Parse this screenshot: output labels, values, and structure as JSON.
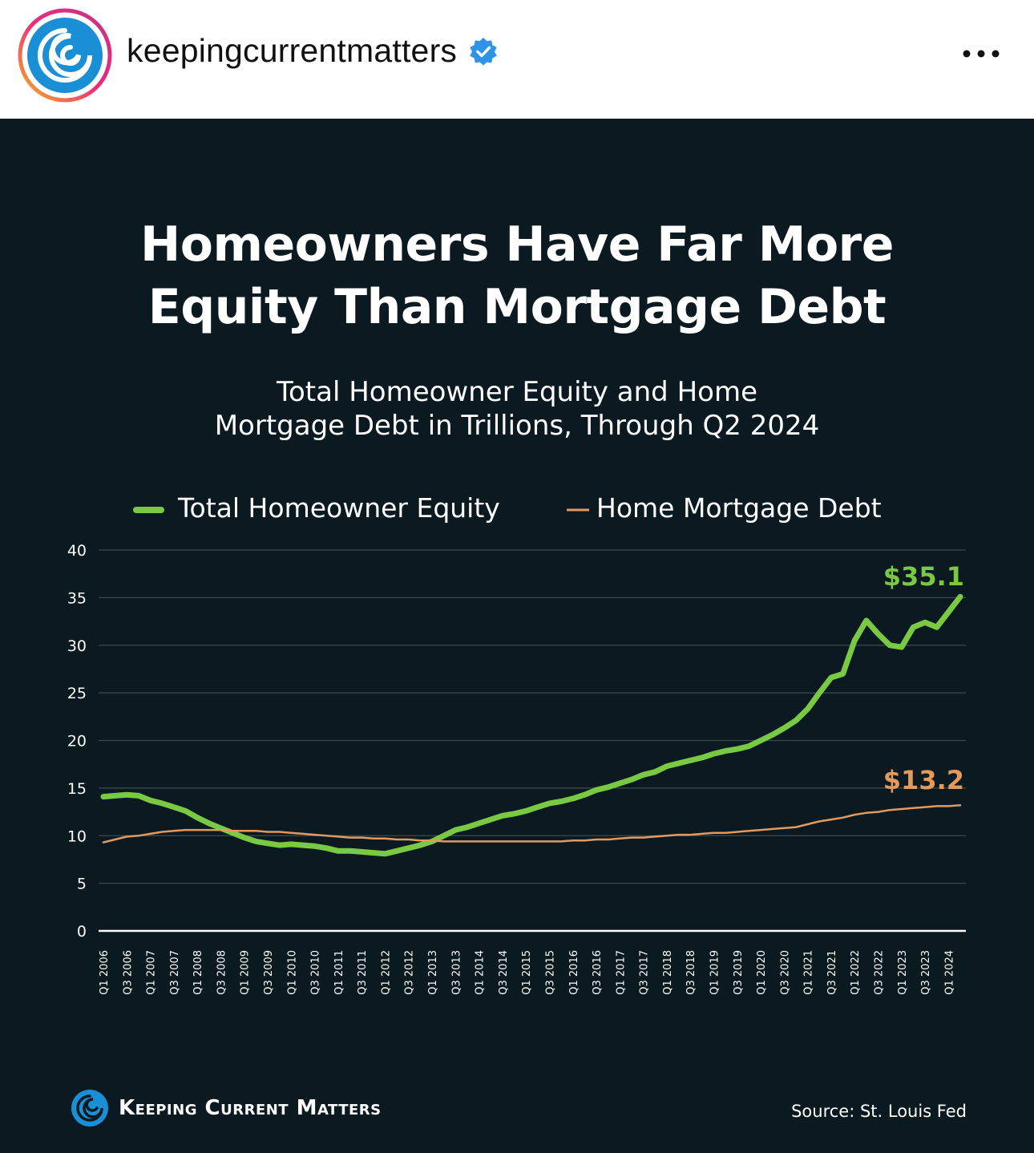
{
  "post": {
    "username": "keepingcurrentmatters",
    "verified_icon": "verified-badge-icon",
    "more_icon": "more-dots-icon"
  },
  "graphic": {
    "title_line1": "Homeowners Have Far More",
    "title_line2": "Equity Than Mortgage Debt",
    "subtitle_line1": "Total Homeowner Equity and Home",
    "subtitle_line2": "Mortgage Debt in Trillions, Through Q2 2024",
    "brand": "Keeping Current Matters",
    "source": "Source: St. Louis Fed"
  },
  "colors": {
    "background": "#0b1920",
    "equity": "#7ac943",
    "debt": "#e39a5f"
  },
  "chart_data": {
    "type": "line",
    "title": "Homeowners Have Far More Equity Than Mortgage Debt",
    "subtitle": "Total Homeowner Equity and Home Mortgage Debt in Trillions, Through Q2 2024",
    "xlabel": "",
    "ylabel": "",
    "ylim": [
      0,
      40
    ],
    "yticks": [
      0,
      5,
      10,
      15,
      20,
      25,
      30,
      35,
      40
    ],
    "grid": true,
    "legend_position": "top",
    "x": [
      "Q1 2006",
      "Q2 2006",
      "Q3 2006",
      "Q4 2006",
      "Q1 2007",
      "Q2 2007",
      "Q3 2007",
      "Q4 2007",
      "Q1 2008",
      "Q2 2008",
      "Q3 2008",
      "Q4 2008",
      "Q1 2009",
      "Q2 2009",
      "Q3 2009",
      "Q4 2009",
      "Q1 2010",
      "Q2 2010",
      "Q3 2010",
      "Q4 2010",
      "Q1 2011",
      "Q2 2011",
      "Q3 2011",
      "Q4 2011",
      "Q1 2012",
      "Q2 2012",
      "Q3 2012",
      "Q4 2012",
      "Q1 2013",
      "Q2 2013",
      "Q3 2013",
      "Q4 2013",
      "Q1 2014",
      "Q2 2014",
      "Q3 2014",
      "Q4 2014",
      "Q1 2015",
      "Q2 2015",
      "Q3 2015",
      "Q4 2015",
      "Q1 2016",
      "Q2 2016",
      "Q3 2016",
      "Q4 2016",
      "Q1 2017",
      "Q2 2017",
      "Q3 2017",
      "Q4 2017",
      "Q1 2018",
      "Q2 2018",
      "Q3 2018",
      "Q4 2018",
      "Q1 2019",
      "Q2 2019",
      "Q3 2019",
      "Q4 2019",
      "Q1 2020",
      "Q2 2020",
      "Q3 2020",
      "Q4 2020",
      "Q1 2021",
      "Q2 2021",
      "Q3 2021",
      "Q4 2021",
      "Q1 2022",
      "Q2 2022",
      "Q3 2022",
      "Q4 2022",
      "Q1 2023",
      "Q2 2023",
      "Q3 2023",
      "Q4 2023",
      "Q1 2024",
      "Q2 2024"
    ],
    "tick_labels": [
      "Q1 2006",
      "Q3 2006",
      "Q1 2007",
      "Q3 2007",
      "Q1 2008",
      "Q3 2008",
      "Q1 2009",
      "Q3 2009",
      "Q1 2010",
      "Q3 2010",
      "Q1 2011",
      "Q3 2011",
      "Q1 2012",
      "Q3 2012",
      "Q1 2013",
      "Q3 2013",
      "Q1 2014",
      "Q3 2014",
      "Q1 2015",
      "Q3 2015",
      "Q1 2016",
      "Q3 2016",
      "Q1 2017",
      "Q3 2017",
      "Q1 2018",
      "Q3 2018",
      "Q1 2019",
      "Q3 2019",
      "Q1 2020",
      "Q3 2020",
      "Q1 2021",
      "Q3 2021",
      "Q1 2022",
      "Q3 2022",
      "Q1 2023",
      "Q3 2023",
      "Q1 2024"
    ],
    "series": [
      {
        "name": "Total Homeowner Equity",
        "end_label": "$35.1",
        "values": [
          14.1,
          14.2,
          14.3,
          14.2,
          13.7,
          13.4,
          13.0,
          12.6,
          11.9,
          11.3,
          10.8,
          10.3,
          9.8,
          9.4,
          9.2,
          9.0,
          9.1,
          9.0,
          8.9,
          8.7,
          8.4,
          8.4,
          8.3,
          8.2,
          8.1,
          8.4,
          8.7,
          9.0,
          9.4,
          10.0,
          10.6,
          10.9,
          11.3,
          11.7,
          12.1,
          12.3,
          12.6,
          13.0,
          13.4,
          13.6,
          13.9,
          14.3,
          14.8,
          15.1,
          15.5,
          15.9,
          16.4,
          16.7,
          17.3,
          17.6,
          17.9,
          18.2,
          18.6,
          18.9,
          19.1,
          19.4,
          20.0,
          20.6,
          21.3,
          22.1,
          23.3,
          25.0,
          26.6,
          27.0,
          30.5,
          32.6,
          31.2,
          30.0,
          29.8,
          31.9,
          32.4,
          31.9,
          33.5,
          35.1
        ]
      },
      {
        "name": "Home Mortgage Debt",
        "end_label": "$13.2",
        "values": [
          9.3,
          9.6,
          9.9,
          10.0,
          10.2,
          10.4,
          10.5,
          10.6,
          10.6,
          10.6,
          10.6,
          10.5,
          10.5,
          10.5,
          10.4,
          10.4,
          10.3,
          10.2,
          10.1,
          10.0,
          9.9,
          9.8,
          9.8,
          9.7,
          9.7,
          9.6,
          9.6,
          9.5,
          9.5,
          9.4,
          9.4,
          9.4,
          9.4,
          9.4,
          9.4,
          9.4,
          9.4,
          9.4,
          9.4,
          9.4,
          9.5,
          9.5,
          9.6,
          9.6,
          9.7,
          9.8,
          9.8,
          9.9,
          10.0,
          10.1,
          10.1,
          10.2,
          10.3,
          10.3,
          10.4,
          10.5,
          10.6,
          10.7,
          10.8,
          10.9,
          11.2,
          11.5,
          11.7,
          11.9,
          12.2,
          12.4,
          12.5,
          12.7,
          12.8,
          12.9,
          13.0,
          13.1,
          13.1,
          13.2
        ]
      }
    ]
  }
}
